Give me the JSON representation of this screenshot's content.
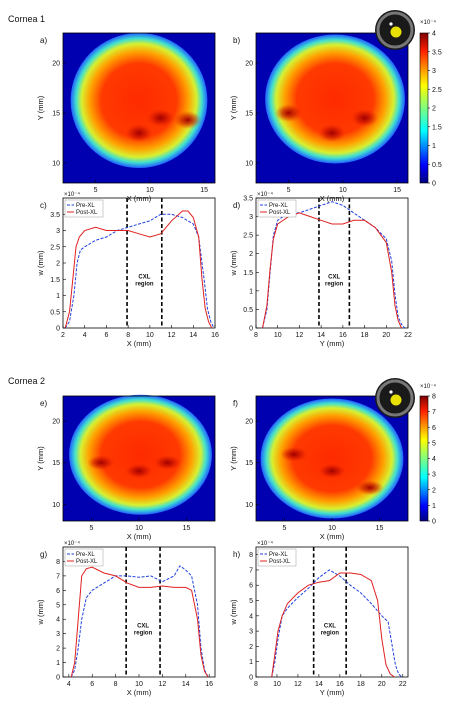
{
  "sections": [
    {
      "heading": "Cornea 1",
      "maps": [
        {
          "label": "a)"
        },
        {
          "label": "b)"
        }
      ],
      "colorbar": {
        "multiplier": "×10⁻⁴",
        "ticks": [
          "0",
          "0.5",
          "1",
          "1.5",
          "2",
          "2.5",
          "3",
          "3.5",
          "4"
        ]
      },
      "profiles": [
        {
          "label": "c)"
        },
        {
          "label": "d)"
        }
      ]
    },
    {
      "heading": "Cornea 2",
      "maps": [
        {
          "label": "e)"
        },
        {
          "label": "f)"
        }
      ],
      "colorbar": {
        "multiplier": "×10⁻⁴",
        "ticks": [
          "0",
          "1",
          "2",
          "3",
          "4",
          "5",
          "6",
          "7",
          "8"
        ]
      },
      "profiles": [
        {
          "label": "g)"
        },
        {
          "label": "h)"
        }
      ]
    }
  ],
  "legend": {
    "pre": "Pre-XL",
    "post": "Post-XL"
  },
  "region_label": [
    "CXL",
    "region"
  ],
  "chart_data": [
    {
      "type": "heatmap",
      "panel": "a)",
      "xlabel": "X (mm)",
      "ylabel": "Y (mm)",
      "xlim": [
        2,
        16
      ],
      "ylim": [
        8,
        23
      ],
      "xticks": [
        5,
        10,
        15
      ],
      "yticks": [
        10,
        15,
        20
      ],
      "zlim": [
        0,
        0.0004
      ],
      "hot": [
        [
          11,
          14.5
        ],
        [
          13.5,
          14.3
        ],
        [
          9,
          13
        ]
      ]
    },
    {
      "type": "heatmap",
      "panel": "b)",
      "xlabel": "X (mm)",
      "ylabel": "Y (mm)",
      "xlim": [
        2,
        16
      ],
      "ylim": [
        8,
        23
      ],
      "xticks": [
        5,
        10,
        15
      ],
      "yticks": [
        10,
        15,
        20
      ],
      "zlim": [
        0,
        0.0004
      ],
      "hot": [
        [
          12,
          14.5
        ],
        [
          5,
          15
        ],
        [
          9,
          13
        ]
      ]
    },
    {
      "type": "line",
      "panel": "c)",
      "xlabel": "X (mm)",
      "ylabel": "w (mm)",
      "ymult": "×10⁻⁴",
      "xlim": [
        2,
        16
      ],
      "ylim": [
        0,
        0.0004
      ],
      "xticks": [
        2,
        4,
        6,
        8,
        10,
        12,
        14,
        16
      ],
      "yticks": [
        0,
        0.5,
        1,
        1.5,
        2,
        2.5,
        3,
        3.5
      ],
      "region": [
        7.9,
        11.1
      ],
      "series": [
        {
          "name": "Pre-XL",
          "color": "#2040e0",
          "x": [
            2.2,
            2.6,
            3.0,
            3.3,
            3.6,
            4,
            5,
            6,
            7,
            8,
            9,
            10,
            11,
            12,
            13,
            14,
            14.5,
            15,
            15.3,
            15.6,
            15.9
          ],
          "y": [
            0,
            2e-05,
            0.0001,
            0.0002,
            0.00024,
            0.00025,
            0.00027,
            0.00028,
            0.0003,
            0.00031,
            0.00032,
            0.00033,
            0.00035,
            0.00035,
            0.00034,
            0.00032,
            0.00028,
            0.00015,
            6e-05,
            2e-05,
            0
          ]
        },
        {
          "name": "Post-XL",
          "color": "#e02020",
          "x": [
            2.2,
            2.6,
            2.9,
            3.2,
            3.5,
            4,
            5,
            6,
            7,
            8,
            9,
            10,
            11,
            12,
            13,
            13.5,
            14,
            14.5,
            14.8,
            15.1,
            15.4,
            15.7
          ],
          "y": [
            0,
            5e-05,
            0.00015,
            0.00025,
            0.00028,
            0.0003,
            0.00031,
            0.0003,
            0.0003,
            0.0003,
            0.00029,
            0.00028,
            0.00029,
            0.00033,
            0.00036,
            0.00036,
            0.00034,
            0.00028,
            0.00015,
            6e-05,
            2e-05,
            0
          ]
        }
      ]
    },
    {
      "type": "line",
      "panel": "d)",
      "xlabel": "Y (mm)",
      "ylabel": "w (mm)",
      "ymult": "×10⁻⁴",
      "xlim": [
        8,
        22
      ],
      "ylim": [
        0,
        0.00035
      ],
      "xticks": [
        8,
        10,
        12,
        14,
        16,
        18,
        20,
        22
      ],
      "yticks": [
        0,
        0.5,
        1,
        1.5,
        2,
        2.5,
        3,
        3.5
      ],
      "region": [
        13.8,
        16.6
      ],
      "series": [
        {
          "name": "Pre-XL",
          "color": "#2040e0",
          "x": [
            8.6,
            9,
            9.3,
            9.6,
            10,
            11,
            12,
            13,
            14,
            15,
            16,
            17,
            18,
            19,
            20,
            20.5,
            20.8,
            21.1,
            21.4,
            21.7
          ],
          "y": [
            0,
            5e-05,
            0.00015,
            0.00025,
            0.00029,
            0.00031,
            0.00031,
            0.00032,
            0.00033,
            0.00034,
            0.00033,
            0.00031,
            0.00029,
            0.00027,
            0.00024,
            0.00018,
            9e-05,
            3e-05,
            1e-05,
            0
          ]
        },
        {
          "name": "Post-XL",
          "color": "#e02020",
          "x": [
            8.6,
            9,
            9.3,
            9.6,
            10,
            11,
            12,
            13,
            14,
            15,
            16,
            17,
            18,
            19,
            20,
            20.5,
            20.8,
            21.1,
            21.4
          ],
          "y": [
            0,
            6e-05,
            0.00016,
            0.00024,
            0.00028,
            0.0003,
            0.00031,
            0.0003,
            0.00029,
            0.00028,
            0.00028,
            0.00029,
            0.00029,
            0.00027,
            0.00023,
            0.00015,
            6e-05,
            2e-05,
            0
          ]
        }
      ]
    },
    {
      "type": "heatmap",
      "panel": "e)",
      "xlabel": "X (mm)",
      "ylabel": "Y (mm)",
      "xlim": [
        2,
        18
      ],
      "ylim": [
        8,
        23
      ],
      "xticks": [
        5,
        10,
        15
      ],
      "yticks": [
        10,
        15,
        20
      ],
      "zlim": [
        0,
        0.0008
      ],
      "hot": [
        [
          10,
          14
        ],
        [
          6,
          15
        ],
        [
          13,
          15
        ]
      ]
    },
    {
      "type": "heatmap",
      "panel": "f)",
      "xlabel": "X (mm)",
      "ylabel": "Y (mm)",
      "xlim": [
        2,
        18
      ],
      "ylim": [
        8,
        23
      ],
      "xticks": [
        5,
        10,
        15
      ],
      "yticks": [
        10,
        15,
        20
      ],
      "zlim": [
        0,
        0.0008
      ],
      "hot": [
        [
          6,
          16
        ],
        [
          14,
          12
        ],
        [
          10,
          14
        ]
      ]
    },
    {
      "type": "line",
      "panel": "g)",
      "xlabel": "X (mm)",
      "ylabel": "w (mm)",
      "ymult": "×10⁻⁴",
      "xlim": [
        3.5,
        16.5
      ],
      "ylim": [
        0,
        0.0009
      ],
      "xticks": [
        4,
        6,
        8,
        10,
        12,
        14,
        16
      ],
      "yticks": [
        0,
        1,
        2,
        3,
        4,
        5,
        6,
        7,
        8
      ],
      "region": [
        8.9,
        11.8
      ],
      "series": [
        {
          "name": "Pre-XL",
          "color": "#2040e0",
          "x": [
            4.2,
            4.5,
            4.8,
            5.1,
            5.5,
            6,
            7,
            8,
            9,
            10,
            11,
            12,
            13,
            13.5,
            14,
            14.5,
            15,
            15.3,
            15.6,
            15.9
          ],
          "y": [
            0,
            5e-05,
            0.0002,
            0.0004,
            0.00055,
            0.0006,
            0.00065,
            0.0007,
            0.0007,
            0.00069,
            0.0007,
            0.00066,
            0.0007,
            0.00077,
            0.00074,
            0.0007,
            0.0005,
            0.0002,
            5e-05,
            0
          ]
        },
        {
          "name": "Post-XL",
          "color": "#e02020",
          "x": [
            4.2,
            4.5,
            4.8,
            5.1,
            5.5,
            6,
            7,
            8,
            9,
            10,
            11,
            12,
            13,
            14,
            14.5,
            15,
            15.3,
            15.6,
            15.9
          ],
          "y": [
            0,
            0.0001,
            0.0004,
            0.0007,
            0.00075,
            0.00076,
            0.00072,
            0.0007,
            0.00065,
            0.00062,
            0.00062,
            0.00063,
            0.00062,
            0.00062,
            0.0006,
            0.0004,
            0.00015,
            4e-05,
            0
          ]
        }
      ]
    },
    {
      "type": "line",
      "panel": "h)",
      "xlabel": "Y (mm)",
      "ylabel": "w (mm)",
      "ymult": "×10⁻⁴",
      "xlim": [
        8,
        22.5
      ],
      "ylim": [
        0,
        0.00085
      ],
      "xticks": [
        8,
        10,
        12,
        14,
        16,
        18,
        20,
        22
      ],
      "yticks": [
        0,
        1,
        2,
        3,
        4,
        5,
        6,
        7,
        8
      ],
      "region": [
        13.5,
        16.6
      ],
      "series": [
        {
          "name": "Pre-XL",
          "color": "#2040e0",
          "x": [
            9.5,
            9.8,
            10.1,
            10.5,
            11,
            12,
            13,
            14,
            15,
            16,
            17,
            18,
            19,
            20,
            20.6,
            21,
            21.3,
            21.6,
            21.9
          ],
          "y": [
            0,
            0.0001,
            0.00025,
            0.0004,
            0.00045,
            0.00052,
            0.00058,
            0.00065,
            0.0007,
            0.00066,
            0.0006,
            0.00055,
            0.00048,
            0.0004,
            0.00036,
            0.0002,
            8e-05,
            2e-05,
            0
          ]
        },
        {
          "name": "Post-XL",
          "color": "#e02020",
          "x": [
            9.5,
            9.8,
            10.1,
            10.5,
            11,
            12,
            13,
            14,
            15,
            16,
            17,
            18,
            19,
            19.6,
            20,
            20.4,
            20.8,
            21.2
          ],
          "y": [
            0,
            0.00015,
            0.0003,
            0.0004,
            0.00048,
            0.00055,
            0.0006,
            0.00062,
            0.00063,
            0.00068,
            0.00068,
            0.00067,
            0.00063,
            0.0005,
            0.00025,
            8e-05,
            2e-05,
            0
          ]
        }
      ]
    }
  ]
}
